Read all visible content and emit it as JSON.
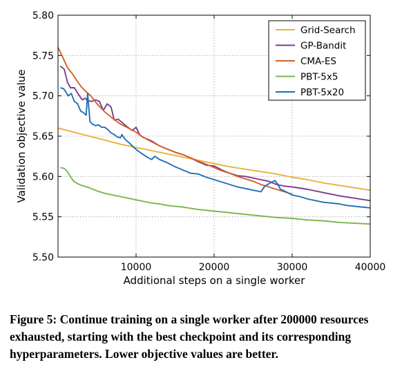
{
  "caption": "Figure 5: Continue training on a single worker after 200000 resources exhausted, starting with the best checkpoint and its corresponding hyperparameters. Lower objective values are better.",
  "chart_data": {
    "type": "line",
    "title": "",
    "xlabel": "Additional steps on a single worker",
    "ylabel": "Validation objective value",
    "xlim": [
      0,
      40000
    ],
    "ylim": [
      5.5,
      5.8
    ],
    "xticks": [
      10000,
      20000,
      30000,
      40000
    ],
    "yticks": [
      5.5,
      5.55,
      5.6,
      5.65,
      5.7,
      5.75,
      5.8
    ],
    "xtick_labels": [
      "10000",
      "20000",
      "30000",
      "40000"
    ],
    "ytick_labels": [
      "5.50",
      "5.55",
      "5.60",
      "5.65",
      "5.70",
      "5.75",
      "5.80"
    ],
    "grid": true,
    "legend_position": "top-right",
    "series": [
      {
        "name": "Grid-Search",
        "color": "#e8b13c",
        "x": [
          0,
          2000,
          4000,
          6000,
          8000,
          10000,
          12000,
          14000,
          16000,
          18000,
          20000,
          22000,
          24000,
          26000,
          28000,
          30000,
          32000,
          34000,
          36000,
          38000,
          40000
        ],
        "y": [
          5.66,
          5.655,
          5.65,
          5.645,
          5.64,
          5.636,
          5.632,
          5.628,
          5.624,
          5.62,
          5.616,
          5.612,
          5.609,
          5.606,
          5.603,
          5.599,
          5.596,
          5.592,
          5.589,
          5.586,
          5.583
        ]
      },
      {
        "name": "GP-Bandit",
        "color": "#7b3c8c",
        "x": [
          300,
          800,
          1200,
          1600,
          2100,
          2600,
          3100,
          3500,
          3800,
          4300,
          4800,
          5300,
          5800,
          6300,
          6800,
          7200,
          7700,
          8200,
          8800,
          9500,
          10000,
          10500,
          11000,
          12000,
          13000,
          14000,
          15000,
          16000,
          17000,
          18000,
          19000,
          20000,
          21000,
          22000,
          23000,
          24000,
          25000,
          26000,
          27000,
          28000,
          29000,
          30000,
          32000,
          34000,
          36000,
          38000,
          40000
        ],
        "y": [
          5.737,
          5.733,
          5.717,
          5.71,
          5.71,
          5.702,
          5.695,
          5.697,
          5.694,
          5.693,
          5.695,
          5.693,
          5.682,
          5.69,
          5.686,
          5.67,
          5.671,
          5.667,
          5.662,
          5.657,
          5.661,
          5.651,
          5.648,
          5.644,
          5.638,
          5.634,
          5.63,
          5.627,
          5.623,
          5.618,
          5.614,
          5.613,
          5.608,
          5.604,
          5.601,
          5.6,
          5.598,
          5.596,
          5.594,
          5.59,
          5.588,
          5.587,
          5.584,
          5.58,
          5.576,
          5.573,
          5.57
        ]
      },
      {
        "name": "CMA-ES",
        "color": "#d35f27",
        "x": [
          0,
          600,
          1200,
          1800,
          2400,
          3000,
          3600,
          4200,
          5000,
          6000,
          7000,
          8000,
          9000,
          10000,
          11000,
          12000,
          13000,
          14000,
          15000,
          16000,
          17000,
          18000,
          19000,
          20000,
          21000,
          22000,
          23000,
          24000,
          25000,
          26000,
          27000,
          28000,
          29000,
          30000
        ],
        "y": [
          5.76,
          5.748,
          5.735,
          5.728,
          5.719,
          5.711,
          5.705,
          5.7,
          5.69,
          5.68,
          5.672,
          5.665,
          5.66,
          5.655,
          5.648,
          5.643,
          5.638,
          5.634,
          5.63,
          5.627,
          5.623,
          5.619,
          5.615,
          5.611,
          5.607,
          5.604,
          5.6,
          5.597,
          5.594,
          5.59,
          5.587,
          5.584,
          5.581,
          5.578
        ]
      },
      {
        "name": "PBT-5x5",
        "color": "#7ab648",
        "x": [
          300,
          800,
          1200,
          1500,
          2000,
          2500,
          3000,
          4000,
          5000,
          6000,
          7000,
          8000,
          9000,
          10000,
          11000,
          12000,
          13000,
          14000,
          16000,
          18000,
          20000,
          22000,
          24000,
          26000,
          28000,
          30000,
          32000,
          34000,
          36000,
          38000,
          40000
        ],
        "y": [
          5.611,
          5.61,
          5.606,
          5.601,
          5.594,
          5.591,
          5.589,
          5.586,
          5.582,
          5.579,
          5.577,
          5.575,
          5.573,
          5.571,
          5.569,
          5.567,
          5.566,
          5.564,
          5.562,
          5.559,
          5.557,
          5.555,
          5.553,
          5.551,
          5.549,
          5.548,
          5.546,
          5.545,
          5.543,
          5.542,
          5.541
        ]
      },
      {
        "name": "PBT-5x20",
        "color": "#1f6fb4",
        "x": [
          300,
          700,
          1000,
          1300,
          1700,
          2100,
          2500,
          2900,
          3300,
          3600,
          3800,
          3900,
          4100,
          4400,
          4800,
          5200,
          5600,
          6000,
          6400,
          6800,
          7200,
          7600,
          8000,
          8200,
          8300,
          8700,
          9200,
          9700,
          10200,
          10800,
          11400,
          12000,
          12400,
          13000,
          14000,
          15000,
          16000,
          17000,
          18000,
          19000,
          20000,
          21000,
          22000,
          23000,
          24000,
          25000,
          26000,
          26500,
          27200,
          27800,
          28100,
          28500,
          29000,
          30000,
          31000,
          32000,
          33000,
          34000,
          35000,
          36000,
          37000,
          38000,
          39000,
          40000
        ],
        "y": [
          5.71,
          5.709,
          5.705,
          5.7,
          5.703,
          5.693,
          5.69,
          5.681,
          5.679,
          5.676,
          5.703,
          5.69,
          5.668,
          5.665,
          5.663,
          5.664,
          5.661,
          5.661,
          5.658,
          5.654,
          5.652,
          5.649,
          5.648,
          5.652,
          5.65,
          5.645,
          5.641,
          5.636,
          5.632,
          5.628,
          5.624,
          5.621,
          5.625,
          5.621,
          5.617,
          5.612,
          5.608,
          5.604,
          5.603,
          5.599,
          5.596,
          5.593,
          5.59,
          5.587,
          5.585,
          5.583,
          5.581,
          5.588,
          5.592,
          5.595,
          5.591,
          5.584,
          5.582,
          5.577,
          5.575,
          5.572,
          5.57,
          5.568,
          5.567,
          5.566,
          5.564,
          5.563,
          5.562,
          5.561
        ]
      }
    ]
  }
}
